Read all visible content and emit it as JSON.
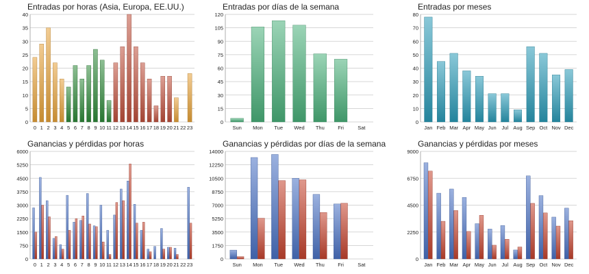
{
  "colors": {
    "orange": "#e8a33a",
    "green": "#2f8a3a",
    "red": "#c0503c",
    "teal": "#2a9bb8",
    "mint": "#4ab07a",
    "blue": "#4a72c4",
    "loss": "#c5432e"
  },
  "chart_data": [
    {
      "id": "hour-entries",
      "type": "bar",
      "title": "Entradas por horas (Asia, Europa, EE.UU.)",
      "categories": [
        "0",
        "1",
        "2",
        "3",
        "4",
        "5",
        "6",
        "7",
        "8",
        "9",
        "10",
        "11",
        "12",
        "13",
        "14",
        "15",
        "16",
        "17",
        "18",
        "19",
        "20",
        "21",
        "22",
        "23"
      ],
      "values": [
        24,
        29,
        35,
        22,
        16,
        13,
        21,
        16,
        21,
        27,
        23,
        8,
        22,
        28,
        40,
        28,
        22,
        16,
        6,
        17,
        17,
        9,
        0,
        18
      ],
      "bar_colors": [
        "orange",
        "orange",
        "orange",
        "orange",
        "orange",
        "green",
        "green",
        "green",
        "green",
        "green",
        "green",
        "green",
        "red",
        "red",
        "red",
        "red",
        "red",
        "red",
        "red",
        "red",
        "red",
        "orange",
        "orange",
        "orange"
      ],
      "ylim": [
        0,
        40
      ],
      "yticks": [
        0,
        5,
        10,
        15,
        20,
        25,
        30,
        35,
        40
      ],
      "grid": true
    },
    {
      "id": "weekday-entries",
      "type": "bar",
      "title": "Entradas por días de la semana",
      "categories": [
        "Sun",
        "Mon",
        "Tue",
        "Wed",
        "Thu",
        "Fri",
        "Sat"
      ],
      "values": [
        4,
        106,
        113,
        108,
        76,
        70,
        0
      ],
      "bar_colors": [
        "mint",
        "mint",
        "mint",
        "mint",
        "mint",
        "mint",
        "mint"
      ],
      "ylim": [
        0,
        120
      ],
      "yticks": [
        0,
        15,
        30,
        45,
        60,
        75,
        90,
        105,
        120
      ],
      "grid": true
    },
    {
      "id": "month-entries",
      "type": "bar",
      "title": "Entradas por meses",
      "categories": [
        "Jan",
        "Feb",
        "Mar",
        "Apr",
        "May",
        "Jun",
        "Jul",
        "Aug",
        "Sep",
        "Oct",
        "Nov",
        "Dec"
      ],
      "values": [
        78,
        45,
        51,
        38,
        34,
        21,
        21,
        9,
        56,
        51,
        35,
        39
      ],
      "bar_colors": [
        "teal",
        "teal",
        "teal",
        "teal",
        "teal",
        "teal",
        "teal",
        "teal",
        "teal",
        "teal",
        "teal",
        "teal"
      ],
      "ylim": [
        0,
        80
      ],
      "yticks": [
        0,
        10,
        20,
        30,
        40,
        50,
        60,
        70,
        80
      ],
      "grid": true
    },
    {
      "id": "hour-pnl",
      "type": "bar",
      "title": "Ganancias y pérdidas por horas",
      "categories": [
        "0",
        "1",
        "2",
        "3",
        "4",
        "5",
        "6",
        "7",
        "8",
        "9",
        "10",
        "11",
        "12",
        "13",
        "14",
        "15",
        "16",
        "17",
        "18",
        "19",
        "20",
        "21",
        "22",
        "23"
      ],
      "series": [
        {
          "color": "blue",
          "values": [
            2850,
            4550,
            3250,
            1150,
            800,
            3550,
            2050,
            2150,
            3650,
            1850,
            3000,
            1600,
            2450,
            3900,
            4350,
            3050,
            1600,
            550,
            700,
            1700,
            650,
            600,
            0,
            4000
          ]
        },
        {
          "color": "loss",
          "values": [
            1500,
            3000,
            2350,
            1250,
            550,
            1600,
            2250,
            2400,
            1950,
            1800,
            950,
            250,
            3150,
            3250,
            5300,
            2000,
            2050,
            400,
            0,
            550,
            650,
            250,
            0,
            2000
          ]
        }
      ],
      "ylim": [
        0,
        6000
      ],
      "yticks": [
        0,
        750,
        1500,
        2250,
        3000,
        3750,
        4500,
        5250,
        6000
      ],
      "grid": true
    },
    {
      "id": "weekday-pnl",
      "type": "bar",
      "title": "Ganancias y pérdidas por días de la semana",
      "categories": [
        "Sun",
        "Mon",
        "Tue",
        "Wed",
        "Thu",
        "Fri",
        "Sat"
      ],
      "series": [
        {
          "color": "blue",
          "values": [
            1150,
            13200,
            13600,
            10500,
            8400,
            7150,
            0
          ]
        },
        {
          "color": "loss",
          "values": [
            300,
            5300,
            10200,
            10300,
            6050,
            7250,
            0
          ]
        }
      ],
      "ylim": [
        0,
        14000
      ],
      "yticks": [
        0,
        1750,
        3500,
        5250,
        7000,
        8750,
        10500,
        12250,
        14000
      ],
      "grid": true
    },
    {
      "id": "month-pnl",
      "type": "bar",
      "title": "Ganancias y pérdidas por meses",
      "categories": [
        "Jan",
        "Feb",
        "Mar",
        "Apr",
        "May",
        "Jun",
        "Jul",
        "Aug",
        "Sep",
        "Oct",
        "Nov",
        "Dec"
      ],
      "series": [
        {
          "color": "blue",
          "values": [
            8050,
            5500,
            5850,
            5150,
            2950,
            2500,
            2800,
            750,
            6950,
            5300,
            3500,
            4250
          ]
        },
        {
          "color": "loss",
          "values": [
            7350,
            3150,
            4050,
            2300,
            3650,
            1150,
            1650,
            1000,
            4650,
            3850,
            2750,
            3200
          ]
        }
      ],
      "ylim": [
        0,
        9000
      ],
      "yticks": [
        0,
        2250,
        4500,
        6750,
        9000
      ],
      "grid": true
    }
  ]
}
